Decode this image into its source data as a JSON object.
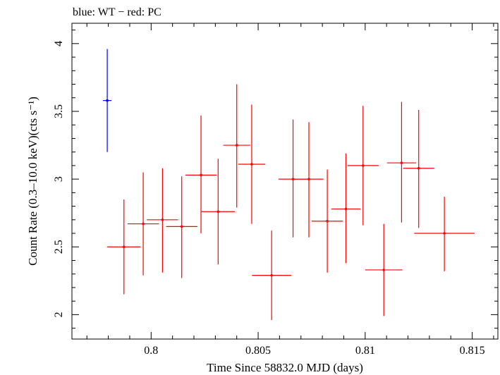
{
  "chart_data": {
    "type": "scatter",
    "title": "blue: WT − red: PC",
    "xlabel": "Time Since 58832.0 MJD (days)",
    "ylabel": "Count Rate (0.3–10.0 keV)(cts s⁻¹)",
    "xlim": [
      0.7963,
      0.8162
    ],
    "ylim": [
      1.82,
      4.15
    ],
    "xticks": [
      0.8,
      0.805,
      0.81,
      0.815
    ],
    "xtick_labels": [
      "0.8",
      "0.805",
      "0.81",
      "0.815"
    ],
    "yticks": [
      2,
      2.5,
      3,
      3.5,
      4
    ],
    "ytick_labels": [
      "2",
      "2.5",
      "3",
      "3.5",
      "4"
    ],
    "grid": false,
    "legend": "none",
    "series": [
      {
        "name": "WT",
        "color": "#0000ff",
        "points": [
          {
            "x": 0.79795,
            "xerr": 0.0002,
            "y": 3.58,
            "ylo": 3.2,
            "yhi": 3.96
          }
        ]
      },
      {
        "name": "PC",
        "color": "#ff0000",
        "points": [
          {
            "x": 0.79873,
            "xerr": 0.00078,
            "y": 2.5,
            "ylo": 2.15,
            "yhi": 2.85
          },
          {
            "x": 0.79963,
            "xerr": 0.00073,
            "y": 2.67,
            "ylo": 2.29,
            "yhi": 3.05
          },
          {
            "x": 0.80053,
            "xerr": 0.00073,
            "y": 2.7,
            "ylo": 2.31,
            "yhi": 3.08
          },
          {
            "x": 0.80143,
            "xerr": 0.00073,
            "y": 2.65,
            "ylo": 2.27,
            "yhi": 3.02
          },
          {
            "x": 0.80233,
            "xerr": 0.00073,
            "y": 3.03,
            "ylo": 2.6,
            "yhi": 3.47
          },
          {
            "x": 0.80313,
            "xerr": 0.00078,
            "y": 2.76,
            "ylo": 2.37,
            "yhi": 3.15
          },
          {
            "x": 0.804,
            "xerr": 0.00063,
            "y": 3.25,
            "ylo": 2.79,
            "yhi": 3.7
          },
          {
            "x": 0.8047,
            "xerr": 0.00063,
            "y": 3.11,
            "ylo": 2.67,
            "yhi": 3.55
          },
          {
            "x": 0.80563,
            "xerr": 0.00092,
            "y": 2.29,
            "ylo": 1.96,
            "yhi": 2.62
          },
          {
            "x": 0.80663,
            "xerr": 0.00068,
            "y": 3.0,
            "ylo": 2.57,
            "yhi": 3.44
          },
          {
            "x": 0.80737,
            "xerr": 0.00068,
            "y": 3.0,
            "ylo": 2.57,
            "yhi": 3.42
          },
          {
            "x": 0.80823,
            "xerr": 0.00073,
            "y": 2.69,
            "ylo": 2.31,
            "yhi": 3.07
          },
          {
            "x": 0.8091,
            "xerr": 0.00068,
            "y": 2.78,
            "ylo": 2.38,
            "yhi": 3.19
          },
          {
            "x": 0.8099,
            "xerr": 0.00073,
            "y": 3.1,
            "ylo": 2.66,
            "yhi": 3.54
          },
          {
            "x": 0.81087,
            "xerr": 0.00087,
            "y": 2.33,
            "ylo": 1.99,
            "yhi": 2.67
          },
          {
            "x": 0.8117,
            "xerr": 0.00068,
            "y": 3.12,
            "ylo": 2.68,
            "yhi": 3.57
          },
          {
            "x": 0.8125,
            "xerr": 0.00073,
            "y": 3.08,
            "ylo": 2.64,
            "yhi": 3.51
          },
          {
            "x": 0.8137,
            "xerr": 0.00141,
            "y": 2.6,
            "ylo": 2.32,
            "yhi": 2.87
          }
        ]
      }
    ]
  }
}
